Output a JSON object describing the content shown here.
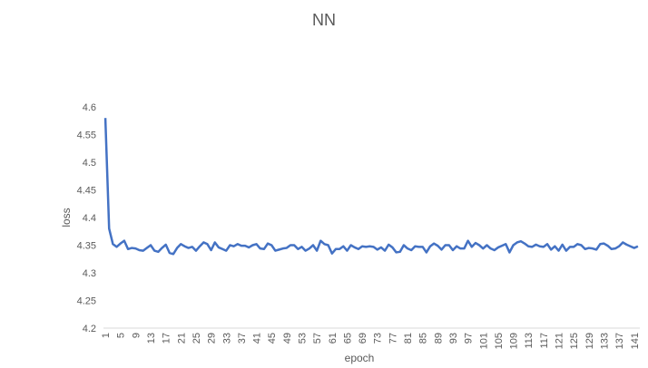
{
  "chart_data": {
    "type": "line",
    "title": "NN",
    "x_label": "epoch",
    "y_label": "loss",
    "categories": [
      1,
      null,
      null,
      null,
      5,
      null,
      null,
      null,
      9,
      null,
      null,
      null,
      13,
      null,
      null,
      null,
      17,
      null,
      null,
      null,
      21,
      null,
      null,
      null,
      25,
      null,
      null,
      null,
      29,
      null,
      null,
      null,
      33,
      null,
      null,
      null,
      37,
      null,
      null,
      null,
      41,
      null,
      null,
      null,
      45,
      null,
      null,
      null,
      49,
      null,
      null,
      null,
      53,
      null,
      null,
      null,
      57,
      null,
      null,
      null,
      61,
      null,
      null,
      null,
      65,
      null,
      null,
      null,
      69,
      null,
      null,
      null,
      73,
      null,
      null,
      null,
      77,
      null,
      null,
      null,
      81,
      null,
      null,
      null,
      85,
      null,
      null,
      null,
      89,
      null,
      null,
      null,
      93,
      null,
      null,
      null,
      97,
      null,
      null,
      null,
      101,
      null,
      null,
      null,
      105,
      null,
      null,
      null,
      109,
      null,
      null,
      null,
      113,
      null,
      null,
      null,
      117,
      null,
      null,
      null,
      121,
      null,
      null,
      null,
      125,
      null,
      null,
      null,
      129,
      null,
      null,
      null,
      133,
      null,
      null,
      null,
      137,
      null,
      null,
      null,
      141,
      null
    ],
    "values": [
      4.58,
      4.38,
      4.352,
      4.347,
      4.353,
      4.358,
      4.343,
      4.345,
      4.344,
      4.341,
      4.34,
      4.345,
      4.35,
      4.34,
      4.338,
      4.345,
      4.351,
      4.336,
      4.334,
      4.345,
      4.352,
      4.348,
      4.345,
      4.347,
      4.34,
      4.348,
      4.355,
      4.352,
      4.341,
      4.355,
      4.346,
      4.343,
      4.34,
      4.35,
      4.348,
      4.352,
      4.349,
      4.349,
      4.346,
      4.35,
      4.352,
      4.344,
      4.343,
      4.353,
      4.35,
      4.34,
      4.342,
      4.344,
      4.345,
      4.35,
      4.35,
      4.343,
      4.347,
      4.34,
      4.344,
      4.35,
      4.34,
      4.358,
      4.352,
      4.35,
      4.335,
      4.343,
      4.343,
      4.348,
      4.34,
      4.35,
      4.346,
      4.343,
      4.348,
      4.347,
      4.348,
      4.347,
      4.342,
      4.346,
      4.34,
      4.351,
      4.346,
      4.337,
      4.338,
      4.35,
      4.344,
      4.341,
      4.348,
      4.347,
      4.347,
      4.337,
      4.348,
      4.353,
      4.349,
      4.342,
      4.35,
      4.35,
      4.341,
      4.348,
      4.344,
      4.344,
      4.358,
      4.347,
      4.354,
      4.35,
      4.344,
      4.35,
      4.344,
      4.341,
      4.346,
      4.349,
      4.352,
      4.337,
      4.35,
      4.355,
      4.357,
      4.353,
      4.348,
      4.347,
      4.351,
      4.348,
      4.347,
      4.352,
      4.342,
      4.348,
      4.34,
      4.351,
      4.34,
      4.347,
      4.347,
      4.352,
      4.35,
      4.343,
      4.345,
      4.344,
      4.342,
      4.352,
      4.353,
      4.349,
      4.343,
      4.344,
      4.348,
      4.355,
      4.351,
      4.348,
      4.345,
      4.348
    ],
    "color": "#4472c4",
    "ylim": [
      4.2,
      4.6
    ],
    "yticks": [
      4.2,
      4.25,
      4.3,
      4.35,
      4.4,
      4.45,
      4.5,
      4.55,
      4.6
    ],
    "grid": false
  }
}
